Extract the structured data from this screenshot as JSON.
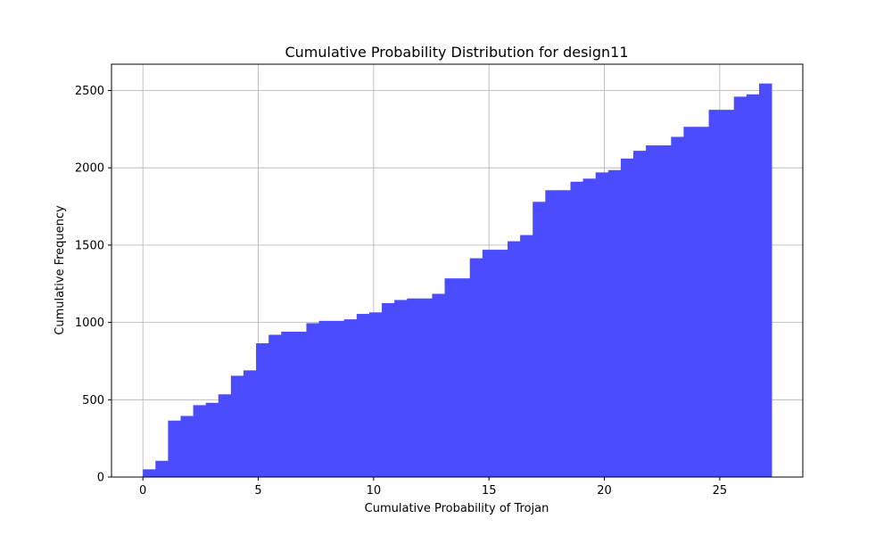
{
  "chart_data": {
    "type": "bar",
    "title": "Cumulative Probability Distribution for design11",
    "xlabel": "Cumulative Probability of Trojan",
    "ylabel": "Cumulative Frequency",
    "xlim": [
      -1.36,
      28.6
    ],
    "ylim": [
      0,
      2670
    ],
    "xticks": [
      0,
      5,
      10,
      15,
      20,
      25
    ],
    "yticks": [
      0,
      500,
      1000,
      1500,
      2000,
      2500
    ],
    "grid": true,
    "bar_color": "#4b4bff",
    "bin_edges": [
      0,
      0.545,
      1.09,
      1.635,
      2.18,
      2.725,
      3.27,
      3.815,
      4.36,
      4.905,
      5.45,
      5.995,
      6.54,
      7.085,
      7.63,
      8.175,
      8.72,
      9.265,
      9.81,
      10.355,
      10.9,
      11.445,
      11.99,
      12.535,
      13.08,
      13.625,
      14.17,
      14.715,
      15.26,
      15.805,
      16.35,
      16.895,
      17.44,
      17.985,
      18.53,
      19.075,
      19.62,
      20.165,
      20.71,
      21.255,
      21.8,
      22.345,
      22.89,
      23.435,
      23.98,
      24.525,
      25.07,
      25.615,
      26.16,
      26.705,
      27.25
    ],
    "values": [
      50,
      105,
      365,
      395,
      465,
      480,
      535,
      655,
      690,
      865,
      920,
      940,
      940,
      995,
      1010,
      1010,
      1020,
      1055,
      1065,
      1125,
      1145,
      1155,
      1155,
      1185,
      1285,
      1285,
      1415,
      1470,
      1470,
      1525,
      1565,
      1780,
      1855,
      1855,
      1910,
      1930,
      1970,
      1985,
      2060,
      2110,
      2145,
      2145,
      2200,
      2265,
      2265,
      2375,
      2375,
      2460,
      2475,
      2545
    ]
  }
}
